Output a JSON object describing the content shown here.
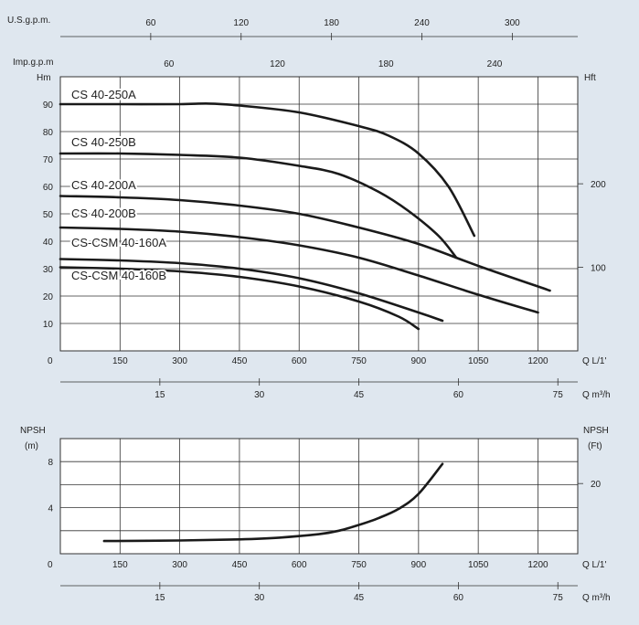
{
  "chart_data": [
    {
      "type": "line",
      "name": "head-chart",
      "units": {
        "usgpm": "U.S.g.p.m.",
        "impgpm": "Imp.g.p.m",
        "hm": "Hm",
        "hft": "Hft",
        "flow_lpm": "Q L/1'",
        "flow_m3h": "Q m³/h",
        "origin": "0"
      },
      "xlim": [
        0,
        1300
      ],
      "ylim": [
        0,
        100
      ],
      "x_ticks": [
        150,
        300,
        450,
        600,
        750,
        900,
        1050,
        1200
      ],
      "x_tick_labels": [
        "150",
        "300",
        "450",
        "600",
        "750",
        "900",
        "1050",
        "1200"
      ],
      "y_ticks": [
        10,
        20,
        30,
        40,
        50,
        60,
        70,
        80,
        90
      ],
      "y_tick_labels": [
        "10",
        "20",
        "30",
        "40",
        "50",
        "60",
        "70",
        "80",
        "90"
      ],
      "usgpm_ticks": [
        60,
        120,
        180,
        240,
        300
      ],
      "usgpm_tick_labels": [
        "60",
        "120",
        "180",
        "240",
        "300"
      ],
      "impgpm_ticks": [
        60,
        120,
        180,
        240
      ],
      "impgpm_tick_labels": [
        "60",
        "120",
        "180",
        "240"
      ],
      "hft_ticks": [
        100,
        200
      ],
      "hft_tick_labels": [
        "100",
        "200"
      ],
      "m3h_ticks": [
        15,
        30,
        45,
        60,
        75
      ],
      "m3h_tick_labels": [
        "15",
        "30",
        "45",
        "60",
        "75"
      ],
      "series": [
        {
          "name": "CS 40-250A",
          "x": [
            0,
            150,
            300,
            375,
            450,
            600,
            750,
            825,
            900,
            975,
            1040
          ],
          "y": [
            90,
            90,
            90,
            90.2,
            89.5,
            87,
            82,
            78.5,
            72,
            60,
            42
          ]
        },
        {
          "name": "CS 40-250B",
          "x": [
            0,
            150,
            300,
            450,
            600,
            700,
            800,
            875,
            950,
            995
          ],
          "y": [
            72,
            72,
            71.5,
            70.5,
            67.5,
            64.5,
            58,
            51,
            42,
            34
          ]
        },
        {
          "name": "CS 40-200A",
          "x": [
            0,
            150,
            300,
            450,
            600,
            750,
            900,
            1050,
            1200,
            1230
          ],
          "y": [
            56.5,
            56,
            55,
            53,
            50,
            45,
            39,
            31,
            23.5,
            22
          ]
        },
        {
          "name": "CS 40-200B",
          "x": [
            0,
            150,
            300,
            450,
            600,
            750,
            900,
            1050,
            1200
          ],
          "y": [
            45,
            44.5,
            43.5,
            41.5,
            38.5,
            34,
            27.5,
            20.5,
            14
          ]
        },
        {
          "name": "CS-CSM 40-160A",
          "x": [
            0,
            150,
            300,
            450,
            600,
            750,
            900,
            960
          ],
          "y": [
            33.5,
            33,
            32,
            30,
            26.5,
            21,
            14,
            11
          ]
        },
        {
          "name": "CS-CSM 40-160B",
          "x": [
            0,
            150,
            300,
            450,
            600,
            750,
            850,
            900
          ],
          "y": [
            30.5,
            30,
            29,
            27,
            23.5,
            18,
            12.5,
            8
          ]
        }
      ]
    },
    {
      "type": "line",
      "name": "npsh-chart",
      "units": {
        "npsh_left": "NPSH",
        "m": "(m)",
        "npsh_right": "NPSH",
        "ft": "(Ft)",
        "flow_lpm": "Q L/1'",
        "flow_m3h": "Q m³/h",
        "origin": "0"
      },
      "xlim": [
        0,
        1300
      ],
      "ylim": [
        0,
        10
      ],
      "x_ticks": [
        150,
        300,
        450,
        600,
        750,
        900,
        1050,
        1200
      ],
      "x_tick_labels": [
        "150",
        "300",
        "450",
        "600",
        "750",
        "900",
        "1050",
        "1200"
      ],
      "y_ticks": [
        4,
        8
      ],
      "y_tick_labels": [
        "4",
        "8"
      ],
      "ft_ticks": [
        20
      ],
      "ft_tick_labels": [
        "20"
      ],
      "m3h_ticks": [
        15,
        30,
        45,
        60,
        75
      ],
      "m3h_tick_labels": [
        "15",
        "30",
        "45",
        "60",
        "75"
      ],
      "series": [
        {
          "name": "NPSH",
          "x": [
            110,
            300,
            450,
            550,
            650,
            700,
            750,
            800,
            850,
            900,
            960
          ],
          "y": [
            1.1,
            1.15,
            1.25,
            1.4,
            1.7,
            2.0,
            2.5,
            3.1,
            3.9,
            5.2,
            7.8
          ]
        }
      ]
    }
  ]
}
